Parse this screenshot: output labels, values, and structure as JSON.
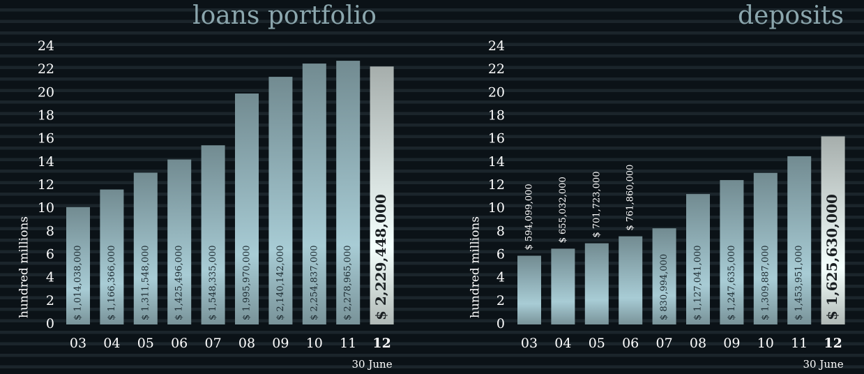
{
  "chart_data": [
    {
      "type": "bar",
      "title": "loans portfolio",
      "y_label": "hundred millions",
      "annotation": "30 June",
      "categories": [
        "03",
        "04",
        "05",
        "06",
        "07",
        "08",
        "09",
        "10",
        "11",
        "12"
      ],
      "values": [
        10.14038,
        11.66366,
        13.11548,
        14.25496,
        15.48335,
        19.9597,
        21.40142,
        22.54837,
        22.78965,
        22.29448
      ],
      "value_labels": [
        "$ 1,014,038,000",
        "$ 1,166,366,000",
        "$ 1,311,548,000",
        "$ 1,425,496,000",
        "$ 1,548,335,000",
        "$ 1,995,970,000",
        "$ 2,140,142,000",
        "$ 2,254,837,000",
        "$ 2,278,965,000",
        "$ 2,229,448,000"
      ],
      "color": "#86a3aa",
      "highlight_color": "#c3cdca",
      "ylim": [
        0,
        24
      ],
      "yticks": [
        0,
        2,
        4,
        6,
        8,
        10,
        12,
        14,
        16,
        18,
        20,
        22,
        24
      ]
    },
    {
      "type": "bar",
      "title": "deposits",
      "y_label": "hundred millions",
      "annotation": "30 June",
      "categories": [
        "03",
        "04",
        "05",
        "06",
        "07",
        "08",
        "09",
        "10",
        "11",
        "12"
      ],
      "values": [
        5.94099,
        6.55032,
        7.01723,
        7.6186,
        8.30994,
        11.27041,
        12.47635,
        13.09887,
        14.53951,
        16.2563
      ],
      "value_labels": [
        "$ 594,099,000",
        "$ 655,032,000",
        "$ 701,723,000",
        "$ 761,860,000",
        "$ 830,994,000",
        "$ 1,127,041,000",
        "$ 1,247,635,000",
        "$ 1,309,887,000",
        "$ 1,453,951,000",
        "$ 1,625,630,000"
      ],
      "color": "#86a3aa",
      "highlight_color": "#c3cdca",
      "ylim": [
        0,
        24
      ],
      "yticks": [
        0,
        2,
        4,
        6,
        8,
        10,
        12,
        14,
        16,
        18,
        20,
        22,
        24
      ]
    }
  ]
}
